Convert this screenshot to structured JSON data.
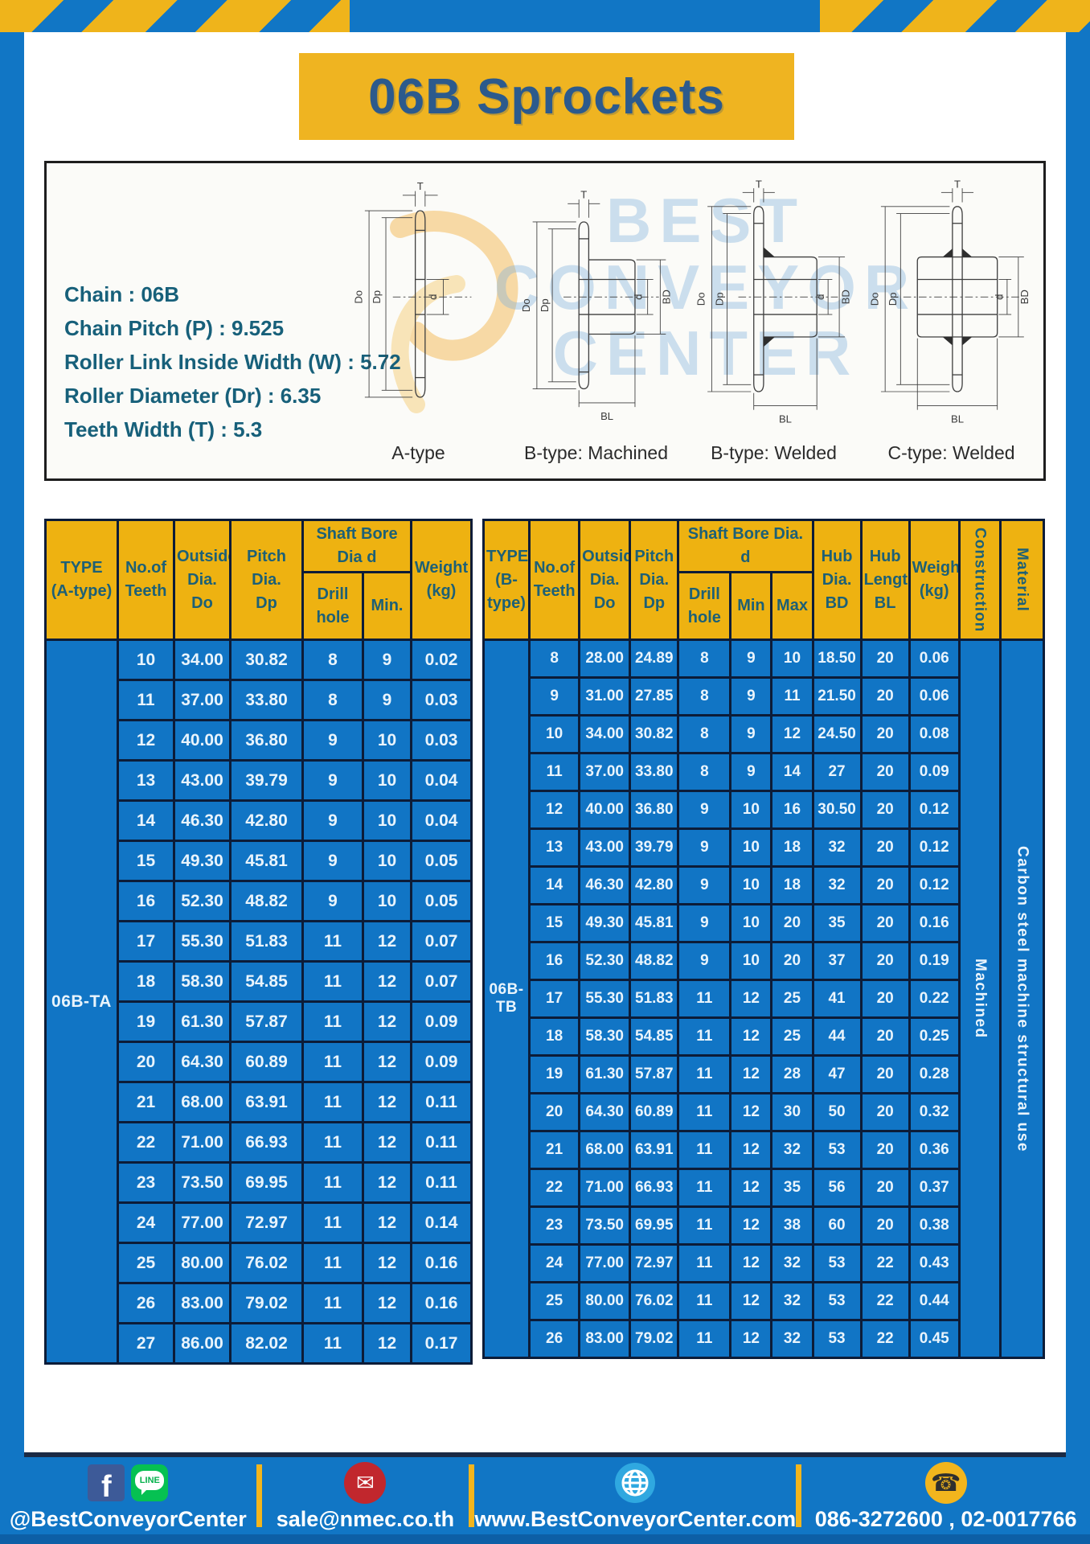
{
  "title": "06B Sprockets",
  "specs": [
    "Chain : 06B",
    "Chain Pitch (P) : 9.525",
    "Roller Link Inside Width (W) : 5.72",
    "Roller Diameter (Dr) : 6.35",
    "Teeth Width (T) : 5.3"
  ],
  "diagram": {
    "watermark_lines": [
      "BEST",
      "CONVEYOR",
      "CENTER"
    ],
    "captions": [
      "A-type",
      "B-type: Machined",
      "B-type: Welded",
      "C-type: Welded"
    ],
    "dims": {
      "t": "T",
      "do": "Do",
      "dp": "Dp",
      "d": "d",
      "bd": "BD",
      "bl": "BL"
    }
  },
  "table_a": {
    "headers": {
      "type": "TYPE\n(A-type)",
      "teeth": "No.of\nTeeth",
      "outside": "Outside\nDia.\nDo",
      "pitch": "Pitch Dia.\nDp",
      "shaft": "Shaft Bore Dia d",
      "drill": "Drill hole",
      "min": "Min.",
      "weight": "Weight\n(kg)"
    },
    "type_label": "06B-TA",
    "rows": [
      [
        "10",
        "34.00",
        "30.82",
        "8",
        "9",
        "0.02"
      ],
      [
        "11",
        "37.00",
        "33.80",
        "8",
        "9",
        "0.03"
      ],
      [
        "12",
        "40.00",
        "36.80",
        "9",
        "10",
        "0.03"
      ],
      [
        "13",
        "43.00",
        "39.79",
        "9",
        "10",
        "0.04"
      ],
      [
        "14",
        "46.30",
        "42.80",
        "9",
        "10",
        "0.04"
      ],
      [
        "15",
        "49.30",
        "45.81",
        "9",
        "10",
        "0.05"
      ],
      [
        "16",
        "52.30",
        "48.82",
        "9",
        "10",
        "0.05"
      ],
      [
        "17",
        "55.30",
        "51.83",
        "11",
        "12",
        "0.07"
      ],
      [
        "18",
        "58.30",
        "54.85",
        "11",
        "12",
        "0.07"
      ],
      [
        "19",
        "61.30",
        "57.87",
        "11",
        "12",
        "0.09"
      ],
      [
        "20",
        "64.30",
        "60.89",
        "11",
        "12",
        "0.09"
      ],
      [
        "21",
        "68.00",
        "63.91",
        "11",
        "12",
        "0.11"
      ],
      [
        "22",
        "71.00",
        "66.93",
        "11",
        "12",
        "0.11"
      ],
      [
        "23",
        "73.50",
        "69.95",
        "11",
        "12",
        "0.11"
      ],
      [
        "24",
        "77.00",
        "72.97",
        "11",
        "12",
        "0.14"
      ],
      [
        "25",
        "80.00",
        "76.02",
        "11",
        "12",
        "0.16"
      ],
      [
        "26",
        "83.00",
        "79.02",
        "11",
        "12",
        "0.16"
      ],
      [
        "27",
        "86.00",
        "82.02",
        "11",
        "12",
        "0.17"
      ]
    ]
  },
  "table_b": {
    "headers": {
      "type": "TYPE\n(B-type)",
      "teeth": "No.of\nTeeth",
      "outside": "Outside\nDia.\nDo",
      "pitch": "Pitch\nDia.\nDp",
      "shaft": "Shaft Bore Dia. d",
      "drill": "Drill hole",
      "min": "Min",
      "max": "Max",
      "hub_dia": "Hub\nDia.\nBD",
      "hub_len": "Hub\nLength\nBL",
      "weight": "Weight\n(kg)",
      "construction": "Construction",
      "material": "Material"
    },
    "type_label": "06B-TB",
    "construction_value": "Machined",
    "material_value": "Carbon steel machine structural use",
    "rows": [
      [
        "8",
        "28.00",
        "24.89",
        "8",
        "9",
        "10",
        "18.50",
        "20",
        "0.06"
      ],
      [
        "9",
        "31.00",
        "27.85",
        "8",
        "9",
        "11",
        "21.50",
        "20",
        "0.06"
      ],
      [
        "10",
        "34.00",
        "30.82",
        "8",
        "9",
        "12",
        "24.50",
        "20",
        "0.08"
      ],
      [
        "11",
        "37.00",
        "33.80",
        "8",
        "9",
        "14",
        "27",
        "20",
        "0.09"
      ],
      [
        "12",
        "40.00",
        "36.80",
        "9",
        "10",
        "16",
        "30.50",
        "20",
        "0.12"
      ],
      [
        "13",
        "43.00",
        "39.79",
        "9",
        "10",
        "18",
        "32",
        "20",
        "0.12"
      ],
      [
        "14",
        "46.30",
        "42.80",
        "9",
        "10",
        "18",
        "32",
        "20",
        "0.12"
      ],
      [
        "15",
        "49.30",
        "45.81",
        "9",
        "10",
        "20",
        "35",
        "20",
        "0.16"
      ],
      [
        "16",
        "52.30",
        "48.82",
        "9",
        "10",
        "20",
        "37",
        "20",
        "0.19"
      ],
      [
        "17",
        "55.30",
        "51.83",
        "11",
        "12",
        "25",
        "41",
        "20",
        "0.22"
      ],
      [
        "18",
        "58.30",
        "54.85",
        "11",
        "12",
        "25",
        "44",
        "20",
        "0.25"
      ],
      [
        "19",
        "61.30",
        "57.87",
        "11",
        "12",
        "28",
        "47",
        "20",
        "0.28"
      ],
      [
        "20",
        "64.30",
        "60.89",
        "11",
        "12",
        "30",
        "50",
        "20",
        "0.32"
      ],
      [
        "21",
        "68.00",
        "63.91",
        "11",
        "12",
        "32",
        "53",
        "20",
        "0.36"
      ],
      [
        "22",
        "71.00",
        "66.93",
        "11",
        "12",
        "35",
        "56",
        "20",
        "0.37"
      ],
      [
        "23",
        "73.50",
        "69.95",
        "11",
        "12",
        "38",
        "60",
        "20",
        "0.38"
      ],
      [
        "24",
        "77.00",
        "72.97",
        "11",
        "12",
        "32",
        "53",
        "22",
        "0.43"
      ],
      [
        "25",
        "80.00",
        "76.02",
        "11",
        "12",
        "32",
        "53",
        "22",
        "0.44"
      ],
      [
        "26",
        "83.00",
        "79.02",
        "11",
        "12",
        "32",
        "53",
        "22",
        "0.45"
      ]
    ]
  },
  "footer": {
    "contacts": [
      {
        "label": "@BestConveyorCenter"
      },
      {
        "label": "sale@nmec.co.th"
      },
      {
        "label": "www.BestConveyorCenter.com"
      },
      {
        "label": "086-3272600 , 02-0017766"
      }
    ],
    "icons": {
      "facebook": "f",
      "line": "LINE",
      "email": "✉",
      "phone": "☎"
    }
  },
  "colors": {
    "table_blue": "#1175C5",
    "header_yellow": "#EEB211",
    "border_navy": "#0C1C38",
    "teal_text": "#1D6076",
    "title_blue": "#2C5A8C",
    "page_blue": "#1176C5",
    "facebook_blue": "#3D5A98",
    "line_green": "#06C152",
    "email_red": "#C1272D",
    "globe_blue": "#2FA8E0",
    "phone_yellow": "#F2B51D"
  }
}
